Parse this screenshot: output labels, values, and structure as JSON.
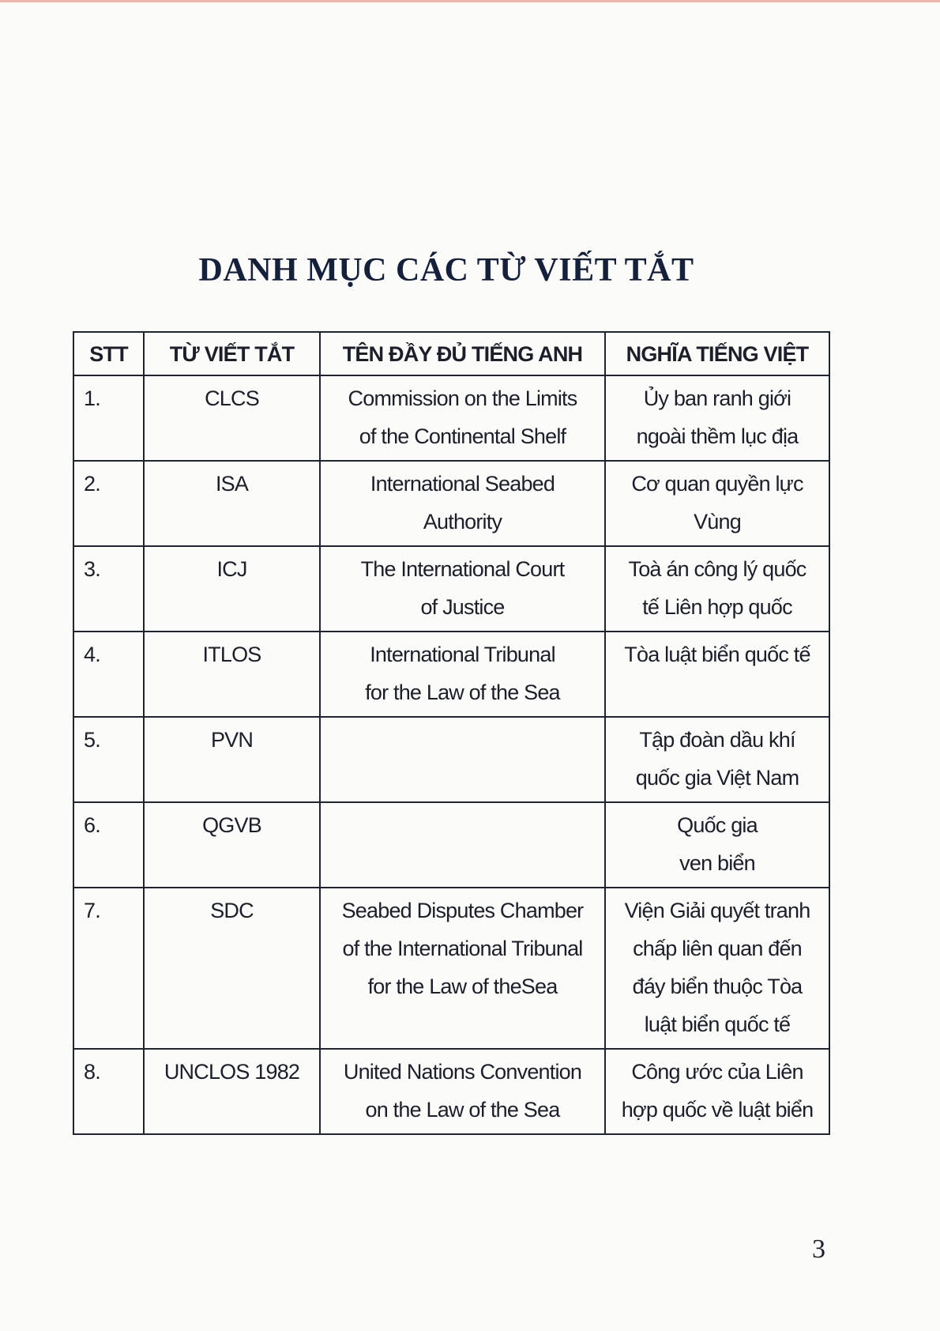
{
  "title": "DANH MỤC CÁC TỪ VIẾT TẮT",
  "table": {
    "headers": [
      "STT",
      "TỪ VIẾT TẮT",
      "TÊN ĐẦY ĐỦ TIẾNG ANH",
      "NGHĨA TIẾNG VIỆT"
    ],
    "rows": [
      {
        "stt": "1.",
        "abbr": "CLCS",
        "english": [
          "Commission on the Limits",
          "of the Continental Shelf"
        ],
        "vietnamese": [
          "Ủy ban ranh giới",
          "ngoài thềm lục địa"
        ]
      },
      {
        "stt": "2.",
        "abbr": "ISA",
        "english": [
          "International Seabed",
          "Authority"
        ],
        "vietnamese": [
          "Cơ quan quyền lực",
          "Vùng"
        ]
      },
      {
        "stt": "3.",
        "abbr": "ICJ",
        "english": [
          "The International Court",
          "of Justice"
        ],
        "vietnamese": [
          "Toà án công lý quốc",
          "tế Liên hợp quốc"
        ]
      },
      {
        "stt": "4.",
        "abbr": "ITLOS",
        "english": [
          "International Tribunal",
          "for the Law of the Sea"
        ],
        "vietnamese": [
          "Tòa luật biển quốc tế"
        ]
      },
      {
        "stt": "5.",
        "abbr": "PVN",
        "english": [],
        "vietnamese": [
          "Tập đoàn dầu khí",
          "quốc gia Việt Nam"
        ]
      },
      {
        "stt": "6.",
        "abbr": "QGVB",
        "english": [],
        "vietnamese": [
          "Quốc gia",
          "ven biển"
        ]
      },
      {
        "stt": "7.",
        "abbr": "SDC",
        "english": [
          "Seabed Disputes Chamber",
          "of the International Tribunal",
          "for the Law of theSea"
        ],
        "vietnamese": [
          "Viện Giải quyết tranh",
          "chấp liên quan đến",
          "đáy biển thuộc Tòa",
          "luật biển quốc tế"
        ]
      },
      {
        "stt": "8.",
        "abbr": "UNCLOS 1982",
        "english": [
          "United Nations Convention",
          "on the Law of the Sea"
        ],
        "vietnamese": [
          "Công ước của Liên",
          "hợp quốc về luật biển"
        ]
      }
    ]
  },
  "page_number": "3"
}
